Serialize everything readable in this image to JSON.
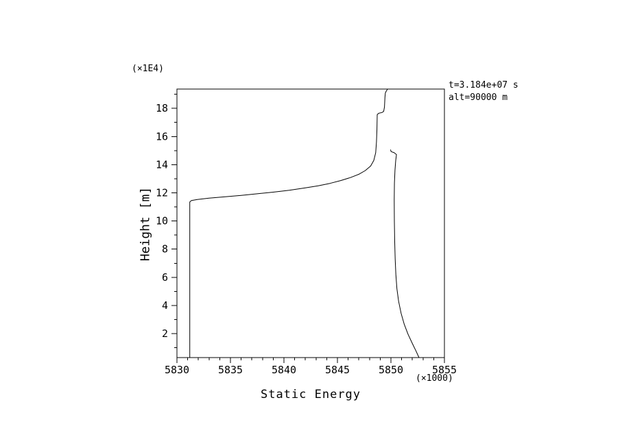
{
  "page": {
    "background": "#ffffff"
  },
  "chart_data": {
    "type": "line",
    "title": "",
    "xlabel": "Static Energy",
    "ylabel": "Height [m]",
    "x_scale_note": "(×1000)",
    "y_scale_note": "(×1E4)",
    "annotations": {
      "time": "t=3.184e+07 s",
      "altitude": "alt=90000 m"
    },
    "axis_color": "#000000",
    "line_color": "#000000",
    "background_color": "#ffffff",
    "grid": false,
    "legend": false,
    "xlim": [
      5830,
      5855
    ],
    "ylim": [
      0.3,
      19.37
    ],
    "xticks": {
      "major_values": [
        5830,
        5835,
        5840,
        5845,
        5850,
        5855
      ],
      "labels": [
        "5830",
        "5835",
        "5840",
        "5845",
        "5850",
        "5855"
      ],
      "minor_step": 1
    },
    "yticks": {
      "major_values": [
        2,
        4,
        6,
        8,
        10,
        12,
        14,
        16,
        18
      ],
      "labels": [
        "2",
        "4",
        "6",
        "8",
        "10",
        "12",
        "14",
        "16",
        "18"
      ],
      "minor_step": 1
    },
    "series": [
      {
        "name": "left-branch",
        "points": [
          [
            5831.2,
            0.3
          ],
          [
            5831.2,
            11.35
          ],
          [
            5831.35,
            11.45
          ],
          [
            5831.9,
            11.53
          ],
          [
            5833.0,
            11.62
          ],
          [
            5834.5,
            11.72
          ],
          [
            5836.0,
            11.82
          ],
          [
            5837.5,
            11.93
          ],
          [
            5839.0,
            12.05
          ],
          [
            5840.5,
            12.18
          ],
          [
            5842.0,
            12.35
          ],
          [
            5843.2,
            12.5
          ],
          [
            5844.3,
            12.67
          ],
          [
            5845.3,
            12.87
          ],
          [
            5846.2,
            13.08
          ],
          [
            5847.0,
            13.32
          ],
          [
            5847.6,
            13.58
          ],
          [
            5848.1,
            13.9
          ],
          [
            5848.4,
            14.3
          ],
          [
            5848.58,
            14.85
          ],
          [
            5848.65,
            15.6
          ],
          [
            5848.69,
            16.5
          ],
          [
            5848.72,
            17.55
          ],
          [
            5848.85,
            17.65
          ],
          [
            5849.15,
            17.7
          ],
          [
            5849.32,
            17.78
          ],
          [
            5849.4,
            18.1
          ],
          [
            5849.44,
            18.8
          ],
          [
            5849.48,
            19.1
          ],
          [
            5849.58,
            19.25
          ],
          [
            5849.7,
            19.37
          ]
        ]
      },
      {
        "name": "right-branch",
        "points": [
          [
            5852.62,
            0.3
          ],
          [
            5852.35,
            0.75
          ],
          [
            5852.0,
            1.3
          ],
          [
            5851.6,
            1.95
          ],
          [
            5851.25,
            2.65
          ],
          [
            5850.95,
            3.45
          ],
          [
            5850.72,
            4.3
          ],
          [
            5850.56,
            5.2
          ],
          [
            5850.46,
            6.2
          ],
          [
            5850.4,
            7.3
          ],
          [
            5850.35,
            8.5
          ],
          [
            5850.32,
            10.0
          ],
          [
            5850.31,
            11.5
          ],
          [
            5850.33,
            12.7
          ],
          [
            5850.38,
            13.6
          ],
          [
            5850.45,
            14.3
          ],
          [
            5850.52,
            14.72
          ],
          [
            5850.3,
            14.85
          ],
          [
            5850.02,
            14.93
          ],
          [
            5849.97,
            15.05
          ]
        ]
      }
    ]
  }
}
